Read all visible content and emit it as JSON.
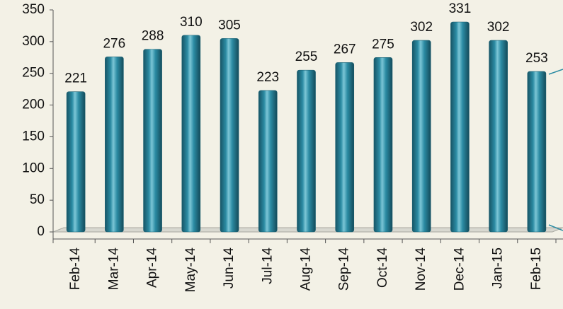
{
  "chart_data": {
    "type": "bar",
    "categories": [
      "Feb-14",
      "Mar-14",
      "Apr-14",
      "May-14",
      "Jun-14",
      "Jul-14",
      "Aug-14",
      "Sep-14",
      "Oct-14",
      "Nov-14",
      "Dec-14",
      "Jan-15",
      "Feb-15"
    ],
    "values": [
      221,
      276,
      288,
      310,
      305,
      223,
      255,
      267,
      275,
      302,
      331,
      302,
      253
    ],
    "color": "#2b8ba3",
    "ylim": [
      0,
      350
    ],
    "yticks": [
      0,
      50,
      100,
      150,
      200,
      250,
      300,
      350
    ],
    "grid": false
  }
}
